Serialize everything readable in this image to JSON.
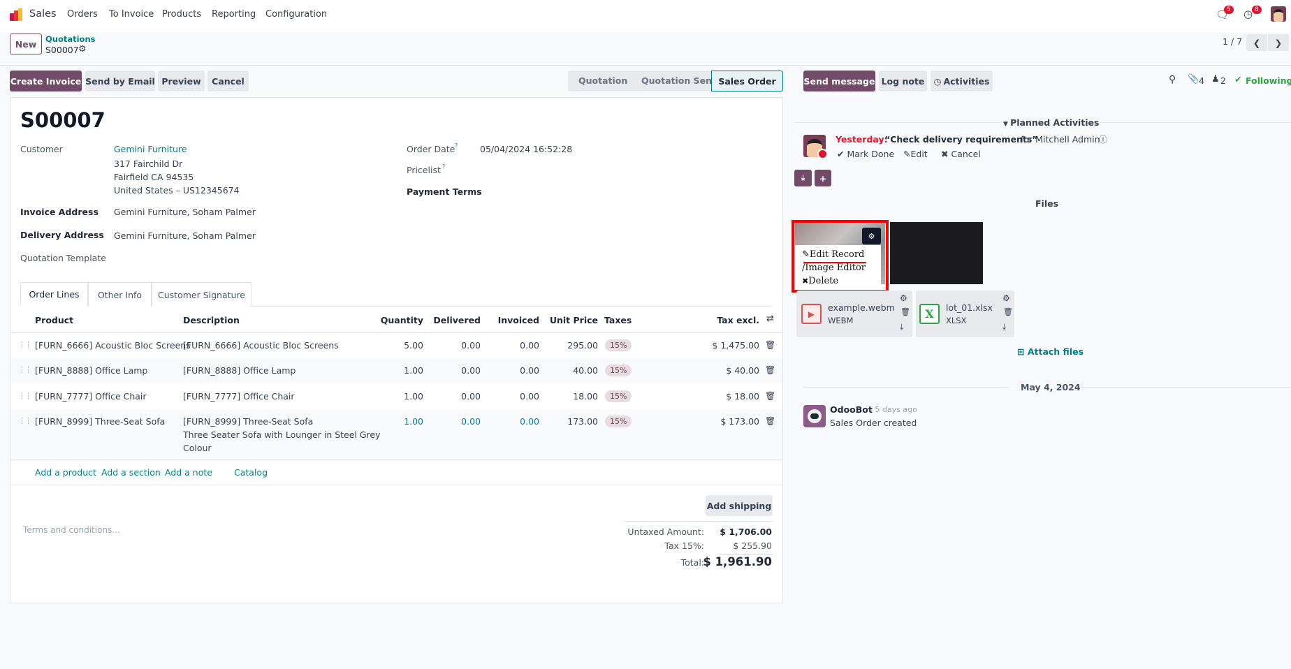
{
  "app": {
    "name": "Sales",
    "menu": [
      "Orders",
      "To Invoice",
      "Products",
      "Reporting",
      "Configuration"
    ],
    "chat_badge": "5",
    "activity_badge": "8"
  },
  "breadcrumb": {
    "new_label": "New",
    "parent": "Quotations",
    "current": "S00007",
    "pager": "1 / 7"
  },
  "actions": {
    "create_invoice": "Create Invoice",
    "send_email": "Send by Email",
    "preview": "Preview",
    "cancel": "Cancel"
  },
  "status": {
    "steps": [
      "Quotation",
      "Quotation Sent",
      "Sales Order"
    ],
    "active": "Sales Order"
  },
  "form": {
    "title": "S00007",
    "customer_label": "Customer",
    "customer": "Gemini Furniture",
    "address": [
      "317 Fairchild Dr",
      "Fairfield CA 94535",
      "United States – US12345674"
    ],
    "invoice_address_label": "Invoice Address",
    "invoice_address": "Gemini Furniture, Soham Palmer",
    "delivery_address_label": "Delivery Address",
    "delivery_address": "Gemini Furniture, Soham Palmer",
    "quotation_template_label": "Quotation Template",
    "order_date_label": "Order Date",
    "order_date": "05/04/2024 16:52:28",
    "pricelist_label": "Pricelist",
    "payment_terms_label": "Payment Terms",
    "help_mark": "?"
  },
  "tabs": [
    "Order Lines",
    "Other Info",
    "Customer Signature"
  ],
  "lines": {
    "headers": [
      "Product",
      "Description",
      "Quantity",
      "Delivered",
      "Invoiced",
      "Unit Price",
      "Taxes",
      "Tax excl."
    ],
    "rows": [
      {
        "product": "[FURN_6666] Acoustic Bloc Screens",
        "description": [
          "[FURN_6666] Acoustic Bloc Screens"
        ],
        "quantity": "5.00",
        "delivered": "0.00",
        "invoiced": "0.00",
        "unit_price": "295.00",
        "taxes": "15%",
        "subtotal": "$ 1,475.00"
      },
      {
        "product": "[FURN_8888] Office Lamp",
        "description": [
          "[FURN_8888] Office Lamp"
        ],
        "quantity": "1.00",
        "delivered": "0.00",
        "invoiced": "0.00",
        "unit_price": "40.00",
        "taxes": "15%",
        "subtotal": "$ 40.00"
      },
      {
        "product": "[FURN_7777] Office Chair",
        "description": [
          "[FURN_7777] Office Chair"
        ],
        "quantity": "1.00",
        "delivered": "0.00",
        "invoiced": "0.00",
        "unit_price": "18.00",
        "taxes": "15%",
        "subtotal": "$ 18.00"
      },
      {
        "product": "[FURN_8999] Three-Seat Sofa",
        "description": [
          "[FURN_8999] Three-Seat Sofa",
          "Three Seater Sofa with Lounger in Steel Grey",
          "Colour"
        ],
        "quantity": "1.00",
        "delivered": "0.00",
        "invoiced": "0.00",
        "unit_price": "173.00",
        "taxes": "15%",
        "subtotal": "$ 173.00"
      }
    ],
    "add_product": "Add a product",
    "add_section": "Add a section",
    "add_note": "Add a note",
    "catalog": "Catalog"
  },
  "footer": {
    "add_shipping": "Add shipping",
    "terms_placeholder": "Terms and conditions...",
    "untaxed_label": "Untaxed Amount:",
    "untaxed": "$ 1,706.00",
    "tax_label": "Tax 15%:",
    "tax": "$ 255.90",
    "total_label": "Total:",
    "total": "$ 1,961.90"
  },
  "chatter": {
    "send_message": "Send message",
    "log_note": "Log note",
    "activities": "Activities",
    "attachments_count": "4",
    "followers_count": "2",
    "following": "Following",
    "planned_activities": "Planned Activities",
    "activity": {
      "when": "Yesterday:",
      "summary": "“Check delivery requirements”",
      "for": "for Mitchell Admin",
      "mark_done": "Mark Done",
      "edit": "Edit",
      "cancel": "Cancel"
    },
    "files_label": "Files",
    "menu": [
      "Edit Record",
      "Image Editor",
      "Delete"
    ],
    "files": [
      {
        "name": "example.webm",
        "type": "WEBM"
      },
      {
        "name": "lot_01.xlsx",
        "type": "XLSX"
      }
    ],
    "attach_files": "Attach files",
    "date_separator": "May 4, 2024",
    "message": {
      "author": "OdooBot",
      "time": "- 5 days ago",
      "body": "Sales Order created"
    }
  },
  "colors": {
    "primary": "#714b67",
    "link": "#017e84",
    "highlight": "#ff0000",
    "danger": "#e3122e",
    "success": "#28a745"
  }
}
